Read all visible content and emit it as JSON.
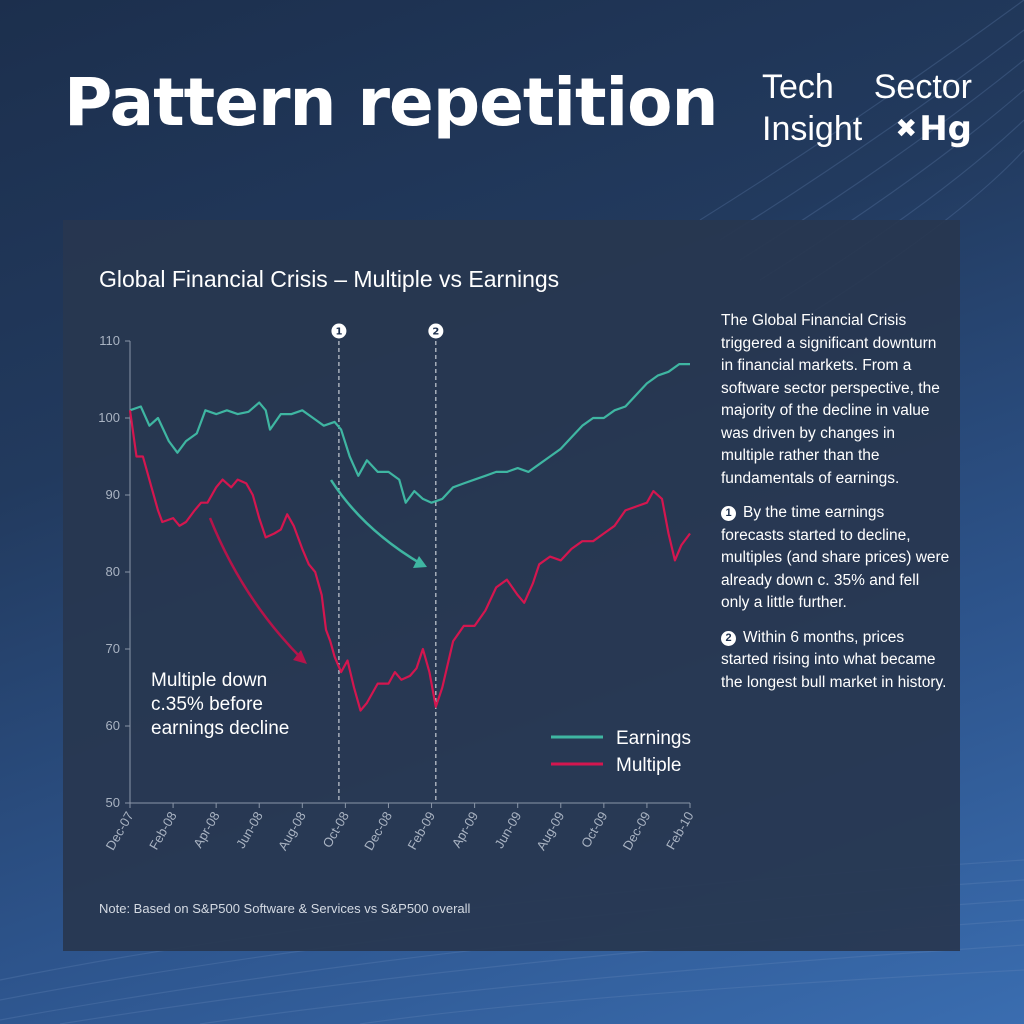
{
  "header": {
    "title": "Pattern repetition",
    "brand_line1_left": "Tech",
    "brand_line1_right": "Sector",
    "brand_line2_left": "Insight",
    "brand_logo": "Hg",
    "brand_icon": "x-mark-icon"
  },
  "panel": {
    "chart_title": "Global Financial Crisis – Multiple vs Earnings",
    "annotation_lines": [
      "Multiple down",
      "c.35% before",
      "earnings decline"
    ],
    "markers": [
      "1",
      "2"
    ],
    "note": "Note: Based on S&P500 Software & Services vs S&P500 overall",
    "side_intro": "The Global Financial Crisis triggered a significant downturn in financial markets. From a software sector perspective, the majority of the decline in value was driven by changes in multiple rather than the fundamentals of earnings.",
    "side_point1_num": "1",
    "side_point1": "By the time earnings forecasts started to decline, multiples (and share prices) were already down c. 35% and fell only a little further.",
    "side_point2_num": "2",
    "side_point2": "Within 6 months, prices started rising into what became the longest bull market in history."
  },
  "colors": {
    "earnings": "#3fb6a2",
    "multiple": "#d4164f",
    "panel": "#283750"
  },
  "chart_data": {
    "type": "line",
    "x_tick_labels": [
      "Dec-07",
      "Feb-08",
      "Apr-08",
      "Jun-08",
      "Aug-08",
      "Oct-08",
      "Dec-08",
      "Feb-09",
      "Apr-09",
      "Jun-09",
      "Aug-09",
      "Oct-09",
      "Dec-09",
      "Feb-10"
    ],
    "x_range_months": [
      0,
      26
    ],
    "ylim": [
      50,
      110
    ],
    "y_ticks": [
      50,
      60,
      70,
      80,
      90,
      100,
      110
    ],
    "markers_at_month": [
      9.7,
      14.2
    ],
    "legend_position": "bottom-right",
    "series": [
      {
        "name": "Earnings",
        "color": "#3fb6a2",
        "points": [
          [
            0,
            101
          ],
          [
            0.5,
            101.5
          ],
          [
            0.9,
            99
          ],
          [
            1.3,
            100
          ],
          [
            1.8,
            97
          ],
          [
            2.2,
            95.5
          ],
          [
            2.6,
            97
          ],
          [
            3.1,
            98
          ],
          [
            3.5,
            101
          ],
          [
            4,
            100.5
          ],
          [
            4.5,
            101
          ],
          [
            5,
            100.5
          ],
          [
            5.5,
            100.8
          ],
          [
            6,
            102
          ],
          [
            6.3,
            101
          ],
          [
            6.5,
            98.5
          ],
          [
            7,
            100.5
          ],
          [
            7.5,
            100.5
          ],
          [
            8,
            101
          ],
          [
            8.5,
            100
          ],
          [
            9,
            99
          ],
          [
            9.5,
            99.5
          ],
          [
            9.8,
            98.5
          ],
          [
            10.2,
            95
          ],
          [
            10.6,
            92.5
          ],
          [
            11,
            94.5
          ],
          [
            11.5,
            93
          ],
          [
            12,
            93
          ],
          [
            12.5,
            92
          ],
          [
            12.8,
            89
          ],
          [
            13.2,
            90.5
          ],
          [
            13.6,
            89.5
          ],
          [
            14,
            89
          ],
          [
            14.5,
            89.5
          ],
          [
            15,
            91
          ],
          [
            15.5,
            91.5
          ],
          [
            16,
            92
          ],
          [
            16.5,
            92.5
          ],
          [
            17,
            93
          ],
          [
            17.5,
            93
          ],
          [
            18,
            93.5
          ],
          [
            18.5,
            93
          ],
          [
            19,
            94
          ],
          [
            19.5,
            95
          ],
          [
            20,
            96
          ],
          [
            20.5,
            97.5
          ],
          [
            21,
            99
          ],
          [
            21.5,
            100
          ],
          [
            22,
            100
          ],
          [
            22.5,
            101
          ],
          [
            23,
            101.5
          ],
          [
            23.5,
            103
          ],
          [
            24,
            104.5
          ],
          [
            24.5,
            105.5
          ],
          [
            25,
            106
          ],
          [
            25.5,
            107
          ],
          [
            26,
            107
          ]
        ]
      },
      {
        "name": "Multiple",
        "color": "#d4164f",
        "points": [
          [
            0,
            101
          ],
          [
            0.3,
            95
          ],
          [
            0.6,
            95
          ],
          [
            1,
            91
          ],
          [
            1.3,
            88
          ],
          [
            1.5,
            86.5
          ],
          [
            2,
            87
          ],
          [
            2.3,
            86
          ],
          [
            2.6,
            86.5
          ],
          [
            3,
            88
          ],
          [
            3.3,
            89
          ],
          [
            3.6,
            89
          ],
          [
            4,
            91
          ],
          [
            4.3,
            92
          ],
          [
            4.7,
            91
          ],
          [
            5,
            92
          ],
          [
            5.4,
            91.5
          ],
          [
            5.7,
            90
          ],
          [
            6,
            87
          ],
          [
            6.3,
            84.5
          ],
          [
            6.7,
            85
          ],
          [
            7,
            85.5
          ],
          [
            7.3,
            87.5
          ],
          [
            7.6,
            86
          ],
          [
            8,
            83
          ],
          [
            8.3,
            81
          ],
          [
            8.6,
            80
          ],
          [
            8.9,
            77
          ],
          [
            9.1,
            72.5
          ],
          [
            9.3,
            71
          ],
          [
            9.5,
            69
          ],
          [
            9.8,
            67
          ],
          [
            10.1,
            68.5
          ],
          [
            10.4,
            65
          ],
          [
            10.7,
            62
          ],
          [
            11,
            63
          ],
          [
            11.5,
            65.5
          ],
          [
            12,
            65.5
          ],
          [
            12.3,
            67
          ],
          [
            12.6,
            66
          ],
          [
            13,
            66.5
          ],
          [
            13.3,
            67.5
          ],
          [
            13.6,
            70
          ],
          [
            13.9,
            67
          ],
          [
            14.2,
            62.5
          ],
          [
            14.5,
            65
          ],
          [
            15,
            71
          ],
          [
            15.5,
            73
          ],
          [
            16,
            73
          ],
          [
            16.5,
            75
          ],
          [
            17,
            78
          ],
          [
            17.5,
            79
          ],
          [
            18,
            77
          ],
          [
            18.3,
            76
          ],
          [
            18.7,
            78.5
          ],
          [
            19,
            81
          ],
          [
            19.5,
            82
          ],
          [
            20,
            81.5
          ],
          [
            20.5,
            83
          ],
          [
            21,
            84
          ],
          [
            21.5,
            84
          ],
          [
            22,
            85
          ],
          [
            22.5,
            86
          ],
          [
            23,
            88
          ],
          [
            23.5,
            88.5
          ],
          [
            24,
            89
          ],
          [
            24.3,
            90.5
          ],
          [
            24.7,
            89.5
          ],
          [
            25,
            85
          ],
          [
            25.3,
            81.5
          ],
          [
            25.6,
            83.5
          ],
          [
            26,
            85
          ]
        ]
      }
    ]
  }
}
